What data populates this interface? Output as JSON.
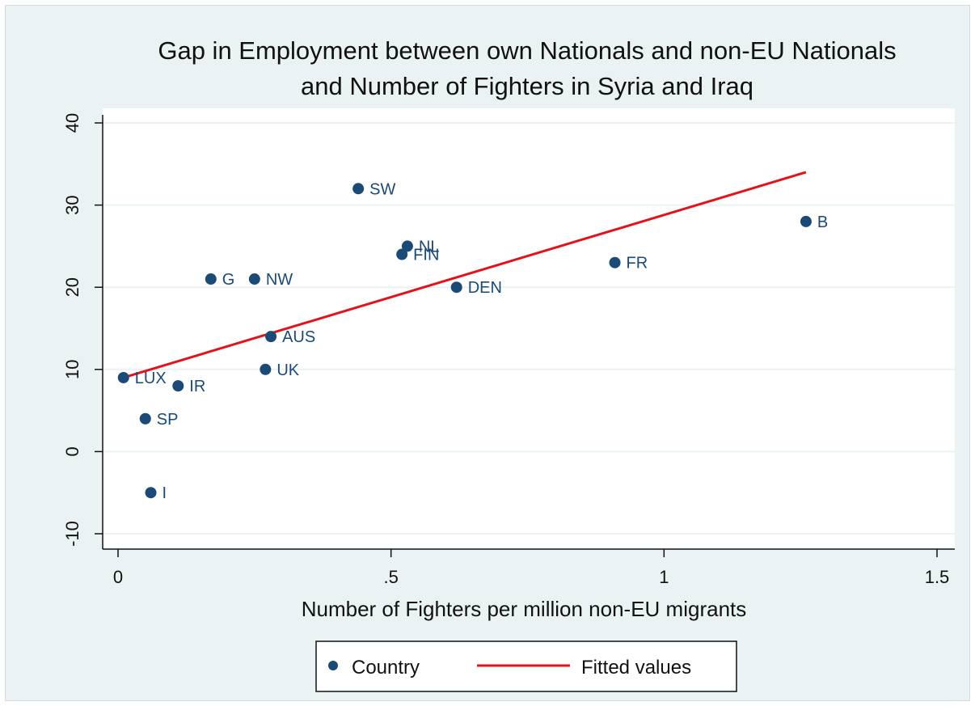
{
  "chart_data": {
    "type": "scatter",
    "title": [
      "Gap in Employment between own Nationals and non-EU Nationals",
      "and Number of Fighters in Syria and Iraq"
    ],
    "xlabel": "Number of Fighters per million non-EU migrants",
    "ylabel": "",
    "xlim": [
      0,
      1.5
    ],
    "ylim": [
      -10,
      40
    ],
    "x_ticks": [
      0,
      0.5,
      1,
      1.5
    ],
    "x_tick_labels": [
      "0",
      ".5",
      "1",
      "1.5"
    ],
    "y_ticks": [
      -10,
      0,
      10,
      20,
      30,
      40
    ],
    "y_tick_labels": [
      "-10",
      "0",
      "10",
      "20",
      "30",
      "40"
    ],
    "grid": "horizontal",
    "legend_position": "bottom",
    "series": [
      {
        "name": "Country",
        "kind": "scatter",
        "color": "#1a4a75",
        "points": [
          {
            "label": "SW",
            "x": 0.44,
            "y": 32
          },
          {
            "label": "B",
            "x": 1.26,
            "y": 28
          },
          {
            "label": "NL",
            "x": 0.53,
            "y": 25
          },
          {
            "label": "FIN",
            "x": 0.52,
            "y": 24
          },
          {
            "label": "FR",
            "x": 0.91,
            "y": 23
          },
          {
            "label": "G",
            "x": 0.17,
            "y": 21
          },
          {
            "label": "NW",
            "x": 0.25,
            "y": 21
          },
          {
            "label": "DEN",
            "x": 0.62,
            "y": 20
          },
          {
            "label": "AUS",
            "x": 0.28,
            "y": 14
          },
          {
            "label": "UK",
            "x": 0.27,
            "y": 10
          },
          {
            "label": "LUX",
            "x": 0.01,
            "y": 9
          },
          {
            "label": "IR",
            "x": 0.11,
            "y": 8
          },
          {
            "label": "SP",
            "x": 0.05,
            "y": 4
          },
          {
            "label": "I",
            "x": 0.06,
            "y": -5
          }
        ]
      },
      {
        "name": "Fitted values",
        "kind": "line",
        "color": "#e3121b",
        "x": [
          0.01,
          1.26
        ],
        "y": [
          9,
          34
        ]
      }
    ]
  }
}
